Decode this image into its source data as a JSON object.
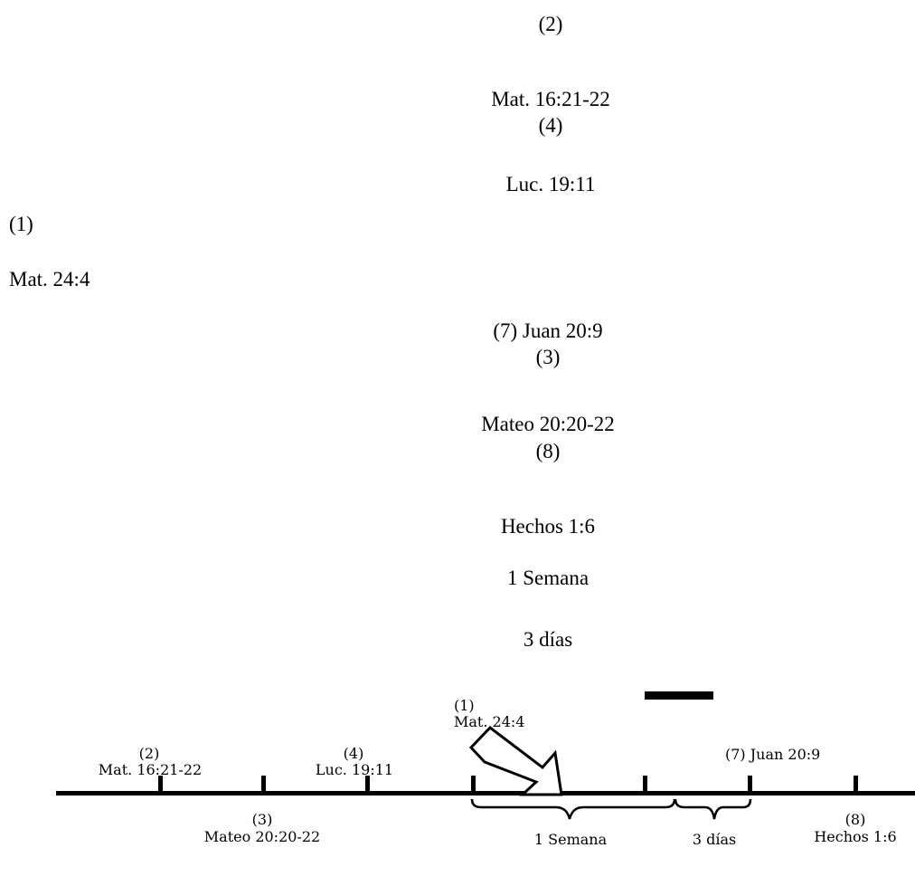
{
  "text_block": {
    "ref2_num": "(2)",
    "ref2_text": "Mat. 16:21-22",
    "ref4_num": "(4)",
    "ref4_text": "Luc. 19:11",
    "ref1_num": "(1)",
    "ref1_text": "Mat. 24:4",
    "ref7": "(7) Juan 20:9",
    "ref3_num": "(3)",
    "ref3_text": "Mateo 20:20-22",
    "ref8_num": "(8)",
    "ref8_text": "Hechos 1:6",
    "span_week": "1 Semana",
    "span_days": "3 días"
  },
  "timeline": {
    "labels": {
      "ref2_num": "(2)",
      "ref2_text": "Mat. 16:21-22",
      "ref4_num": "(4)",
      "ref4_text": "Luc. 19:11",
      "ref1_num": "(1)",
      "ref1_text": "Mat. 24:4",
      "ref7": "(7) Juan 20:9",
      "ref3_num": "(3)",
      "ref3_text": "Mateo 20:20-22",
      "ref8_num": "(8)",
      "ref8_text": "Hechos 1:6",
      "span_week": "1 Semana",
      "span_days": "3 días"
    }
  }
}
